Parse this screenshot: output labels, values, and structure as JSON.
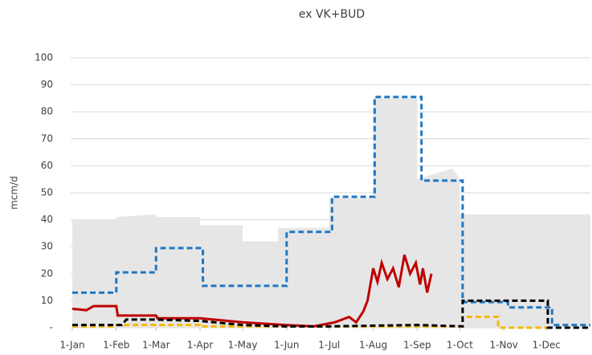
{
  "chart_data": {
    "type": "line",
    "title": "ex VK+BUD",
    "y_label": "mcm/d",
    "xlim": [
      0,
      365
    ],
    "xticks": [
      {
        "value": 0,
        "label": "1-Jan"
      },
      {
        "value": 31,
        "label": "1-Feb"
      },
      {
        "value": 59,
        "label": "1-Mar"
      },
      {
        "value": 90,
        "label": "1-Apr"
      },
      {
        "value": 120,
        "label": "1-May"
      },
      {
        "value": 151,
        "label": "1-Jun"
      },
      {
        "value": 181,
        "label": "1-Jul"
      },
      {
        "value": 212,
        "label": "1-Aug"
      },
      {
        "value": 243,
        "label": "1-Sep"
      },
      {
        "value": 273,
        "label": "1-Oct"
      },
      {
        "value": 304,
        "label": "1-Nov"
      },
      {
        "value": 334,
        "label": "1-Dec"
      }
    ],
    "ylim": [
      0,
      100
    ],
    "yticks": [
      {
        "value": 0,
        "label": "-"
      },
      10,
      20,
      30,
      40,
      50,
      60,
      70,
      80,
      90,
      100
    ],
    "grid": true,
    "series": [
      {
        "type": "area",
        "color": "#e6e6e6",
        "x": [
          0,
          31,
          31,
          59,
          59,
          90,
          90,
          120,
          120,
          145,
          145,
          181,
          181,
          212,
          212,
          243,
          243,
          268,
          273,
          273,
          365
        ],
        "values": [
          40,
          40,
          41,
          42,
          41,
          41,
          38,
          38,
          32,
          32,
          37,
          37,
          48,
          48,
          85,
          85,
          55,
          59,
          55,
          42,
          42
        ]
      },
      {
        "type": "line",
        "dash": true,
        "color": "#1f77c4",
        "x": [
          0,
          31,
          31,
          59,
          59,
          92,
          92,
          151,
          151,
          183,
          183,
          213,
          213,
          246,
          246,
          275,
          275,
          307,
          307,
          338,
          338,
          365
        ],
        "values": [
          13,
          13,
          20.5,
          20.5,
          29.5,
          29.5,
          15.5,
          15.5,
          35.5,
          35.5,
          48.5,
          48.5,
          85.5,
          85.5,
          54.5,
          54.5,
          9.5,
          9.5,
          7.5,
          7.5,
          1,
          1
        ]
      },
      {
        "type": "line",
        "dash": true,
        "color": "#f5b800",
        "x": [
          0,
          31,
          31,
          90,
          90,
          240,
          275,
          275,
          300,
          300,
          335
        ],
        "values": [
          0.5,
          0.5,
          1,
          1,
          0.5,
          0.5,
          0.5,
          4,
          4,
          0,
          0
        ]
      },
      {
        "type": "line",
        "dash": false,
        "color": "#c00000",
        "x": [
          0,
          10,
          15,
          31,
          32,
          59,
          60,
          90,
          120,
          150,
          170,
          185,
          195,
          200,
          205,
          208,
          212,
          215,
          218,
          222,
          226,
          230,
          234,
          238,
          242,
          245,
          247,
          250,
          253
        ],
        "values": [
          7,
          6.5,
          8,
          8,
          4.5,
          4.5,
          3.5,
          3.5,
          2,
          1,
          0.5,
          2,
          4,
          2,
          6,
          10,
          22,
          17,
          24,
          18,
          22,
          15,
          27,
          20,
          24,
          16,
          22,
          13,
          20
        ]
      },
      {
        "type": "line",
        "dash": true,
        "color": "#000000",
        "x": [
          0,
          35,
          38,
          59,
          90,
          120,
          150,
          181,
          243,
          275,
          275,
          335,
          335,
          365
        ],
        "values": [
          1,
          1,
          3,
          3,
          2.5,
          1,
          0.5,
          0.5,
          1,
          0.5,
          10,
          10,
          0,
          0
        ]
      }
    ]
  }
}
